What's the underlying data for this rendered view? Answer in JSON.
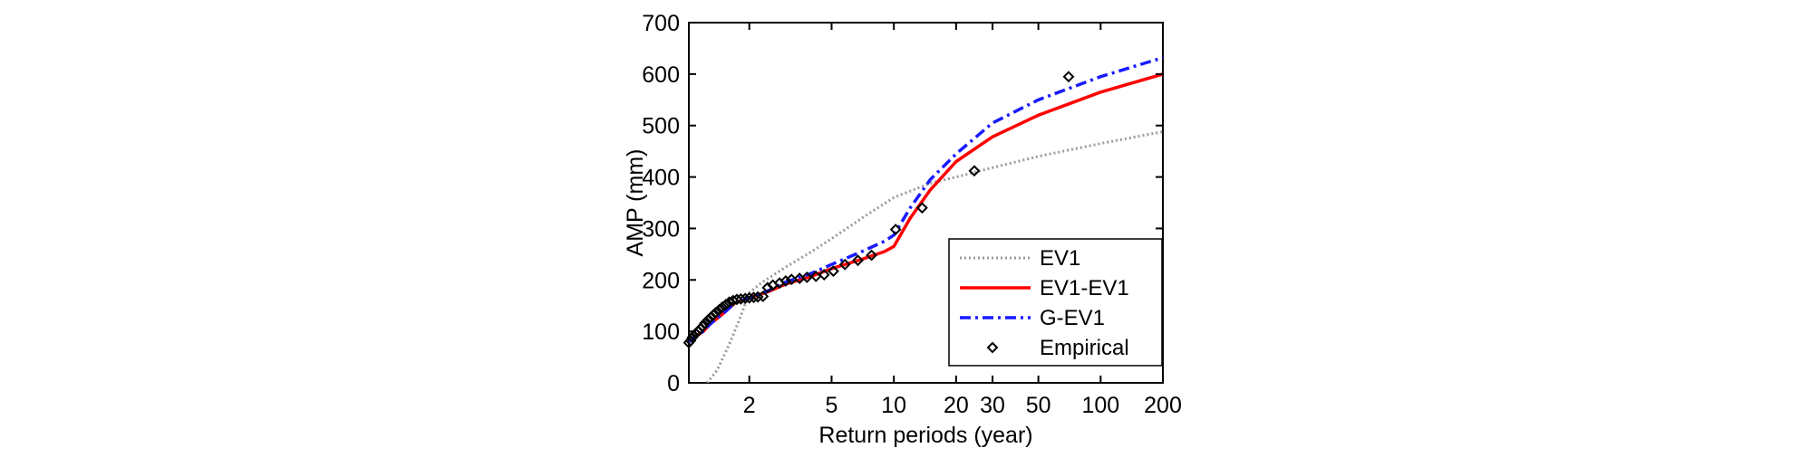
{
  "chart_data": {
    "type": "line",
    "xlabel": "Return periods (year)",
    "ylabel": "AMP (mm)",
    "xscale": "log",
    "xlim": [
      1.02,
      200
    ],
    "ylim": [
      0,
      700
    ],
    "x_ticks": [
      2,
      5,
      10,
      20,
      30,
      50,
      100,
      200
    ],
    "y_ticks": [
      0,
      100,
      200,
      300,
      400,
      500,
      600,
      700
    ],
    "legend_position": "bottom-right",
    "series": [
      {
        "name": "EV1",
        "color": "#9a9a9a",
        "style": "dotted",
        "x": [
          1.25,
          1.4,
          1.6,
          1.8,
          2.0,
          2.3,
          3,
          4,
          5,
          7,
          10,
          15,
          20,
          30,
          50,
          100,
          200
        ],
        "y": [
          0,
          25,
          75,
          125,
          175,
          195,
          225,
          255,
          280,
          320,
          360,
          388,
          400,
          418,
          440,
          465,
          488
        ]
      },
      {
        "name": "EV1-EV1",
        "color": "#ff0000",
        "style": "solid",
        "x": [
          1.02,
          1.1,
          1.2,
          1.3,
          1.5,
          1.7,
          2.0,
          2.5,
          3,
          4,
          5,
          7,
          9,
          10,
          12,
          15,
          20,
          30,
          50,
          100,
          200
        ],
        "y": [
          80,
          90,
          100,
          115,
          135,
          155,
          165,
          178,
          192,
          207,
          222,
          240,
          255,
          265,
          320,
          375,
          430,
          478,
          520,
          565,
          600
        ]
      },
      {
        "name": "G-EV1",
        "color": "#1a1aff",
        "style": "dashdot",
        "x": [
          1.02,
          1.1,
          1.2,
          1.3,
          1.5,
          1.7,
          2.0,
          2.5,
          3,
          4,
          5,
          7,
          9,
          10,
          12,
          15,
          20,
          30,
          50,
          100,
          200
        ],
        "y": [
          80,
          90,
          100,
          115,
          135,
          155,
          165,
          180,
          196,
          213,
          230,
          255,
          275,
          287,
          340,
          395,
          445,
          505,
          550,
          595,
          632
        ]
      },
      {
        "name": "Empirical",
        "color": "#000000",
        "style": "marker",
        "x": [
          1.02,
          1.04,
          1.06,
          1.08,
          1.1,
          1.13,
          1.16,
          1.19,
          1.22,
          1.26,
          1.3,
          1.34,
          1.38,
          1.43,
          1.48,
          1.54,
          1.6,
          1.67,
          1.74,
          1.82,
          1.91,
          2.0,
          2.1,
          2.2,
          2.33,
          2.45,
          2.6,
          2.8,
          3.0,
          3.2,
          3.5,
          3.8,
          4.2,
          4.6,
          5.1,
          5.8,
          6.7,
          7.8,
          10.2,
          13.7,
          24.5,
          70
        ],
        "y": [
          78,
          82,
          88,
          92,
          96,
          100,
          105,
          110,
          116,
          122,
          127,
          132,
          137,
          142,
          147,
          152,
          157,
          160,
          162,
          163,
          164,
          165,
          166,
          167,
          168,
          185,
          190,
          194,
          198,
          201,
          203,
          205,
          207,
          210,
          217,
          230,
          238,
          248,
          298,
          340,
          412,
          595
        ]
      }
    ]
  }
}
